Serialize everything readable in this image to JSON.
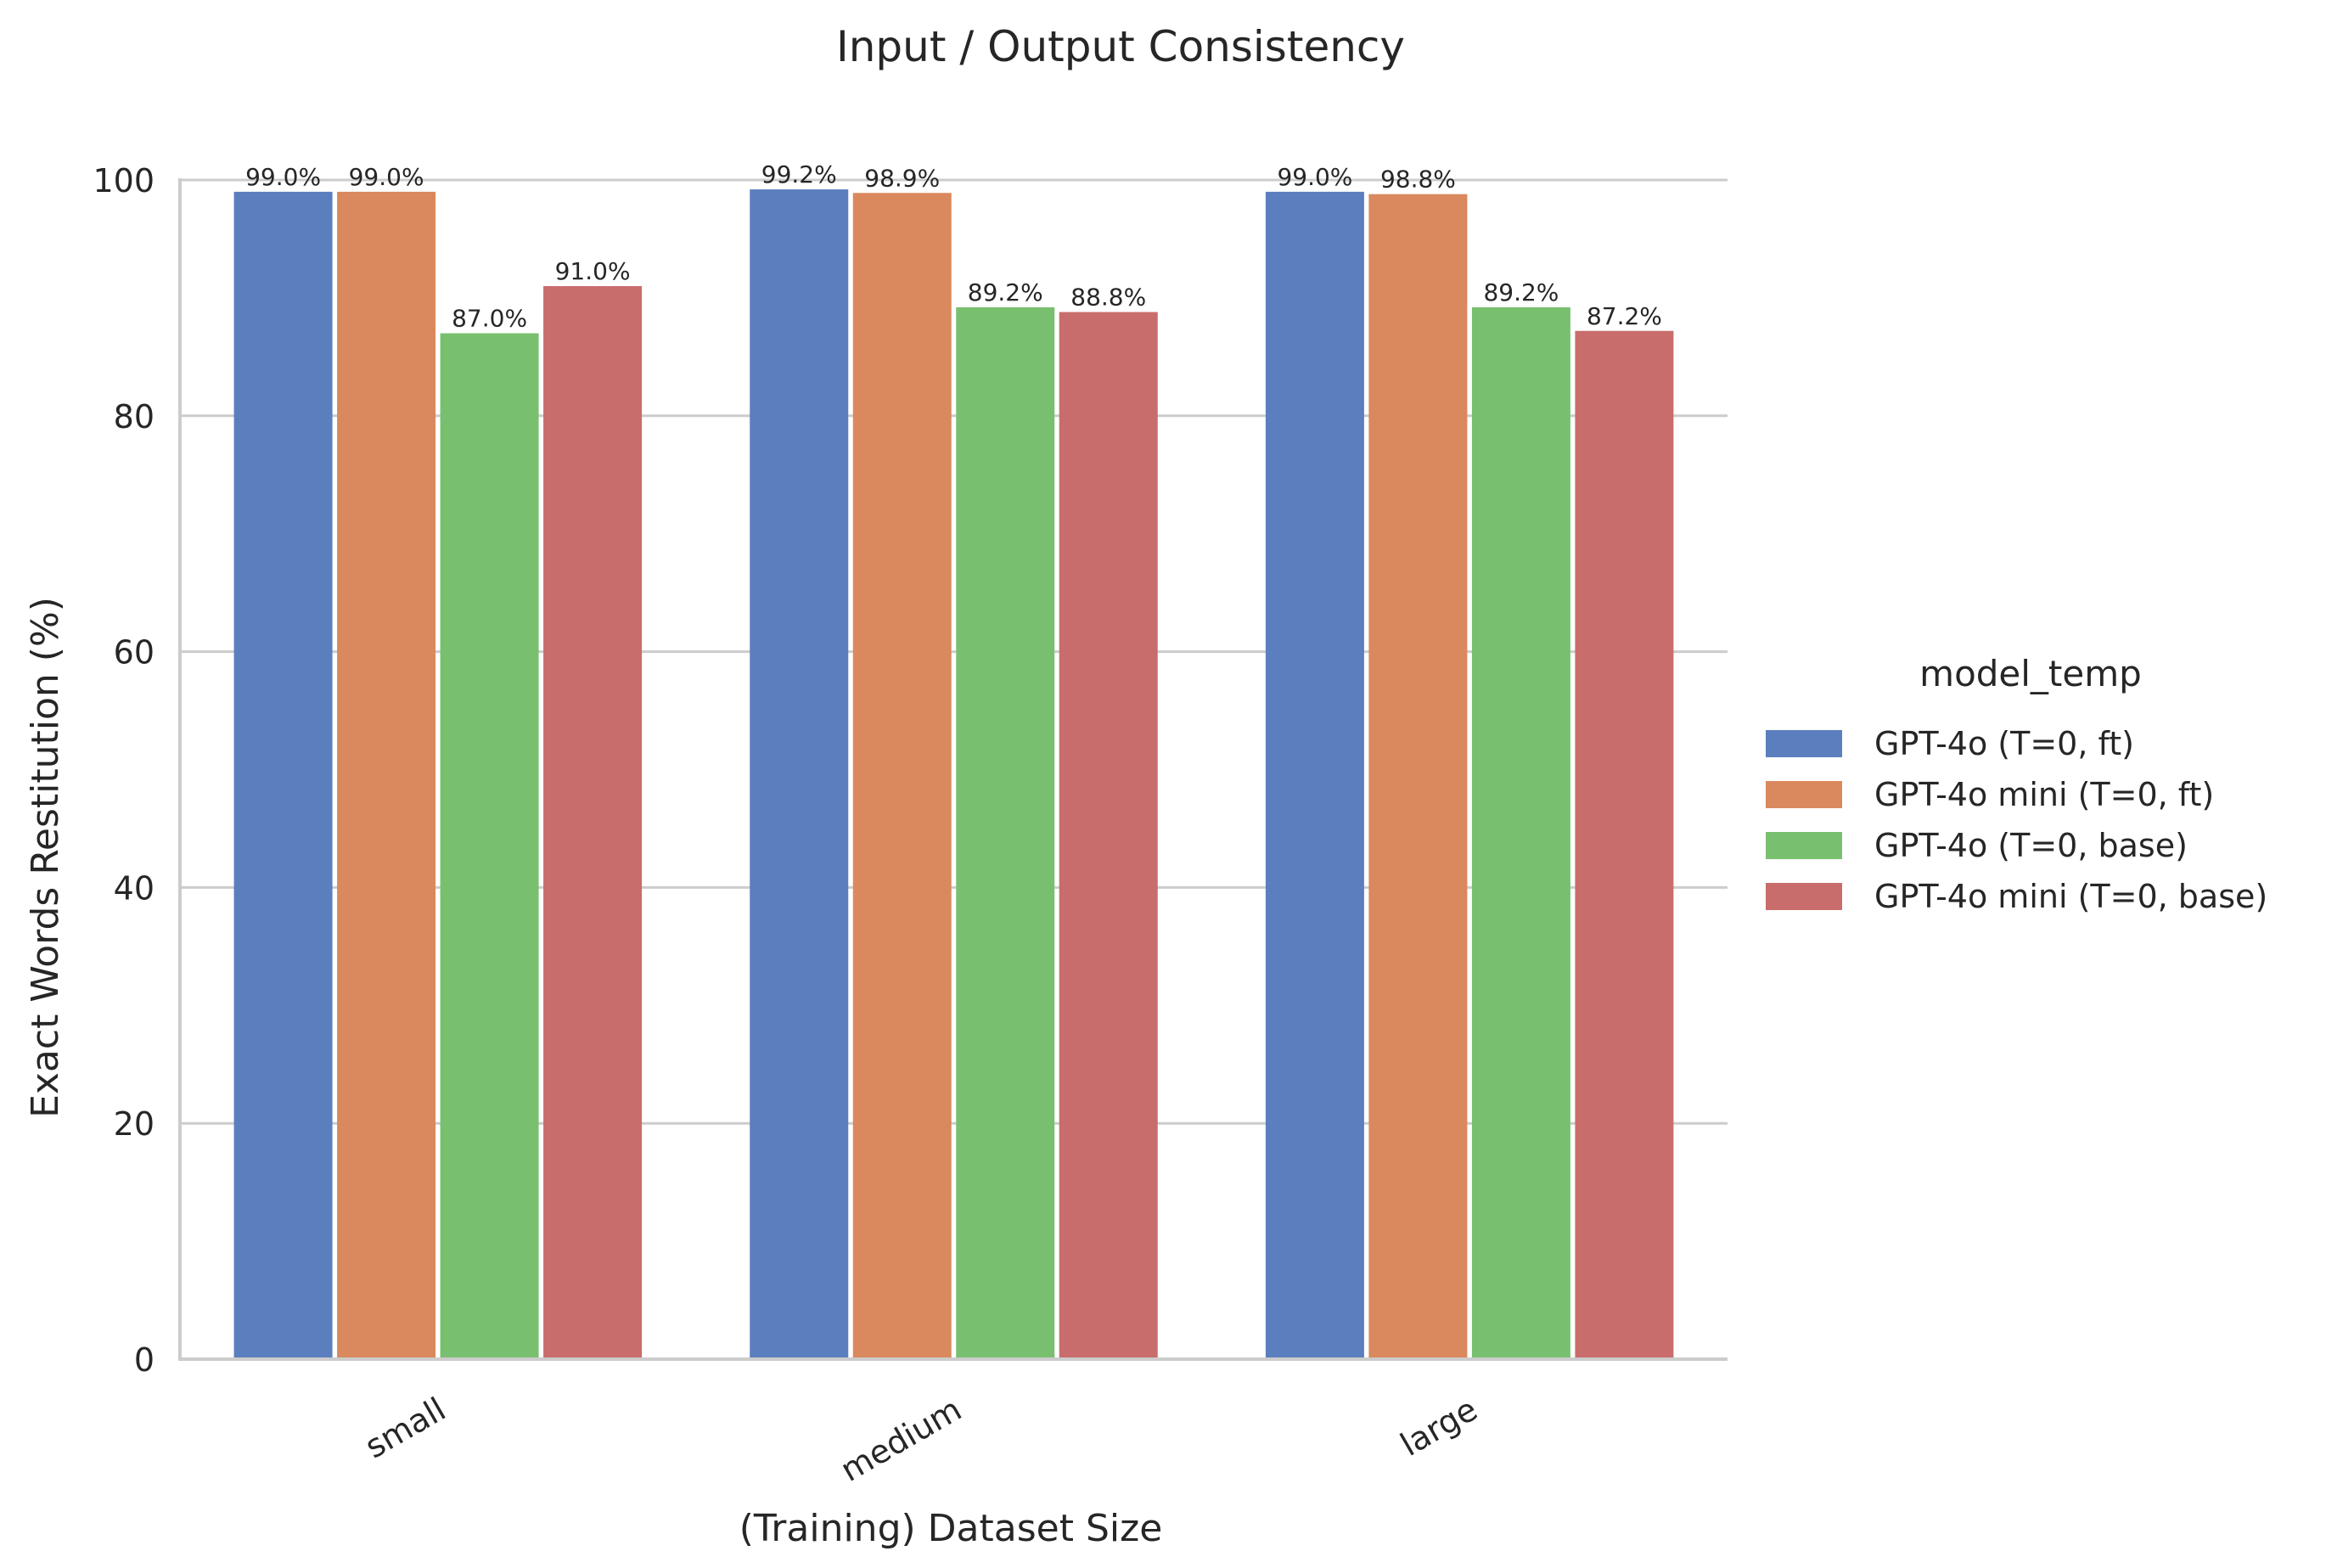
{
  "chart_data": {
    "type": "bar",
    "title": "Input / Output Consistency",
    "xlabel": "(Training) Dataset Size",
    "ylabel": "Exact Words Restitution (%)",
    "categories": [
      "small",
      "medium",
      "large"
    ],
    "ylim": [
      0,
      100
    ],
    "yticks": [
      0,
      20,
      40,
      60,
      80,
      100
    ],
    "grid": "horizontal",
    "legend": {
      "title": "model_temp",
      "placement": "right"
    },
    "series": [
      {
        "name": "GPT-4o (T=0, ft)",
        "color": "#5b7ebf",
        "values": [
          99.0,
          99.2,
          99.0
        ],
        "labels": [
          "99.0%",
          "99.2%",
          "99.0%"
        ]
      },
      {
        "name": "GPT-4o mini (T=0, ft)",
        "color": "#d9895d",
        "values": [
          99.0,
          98.9,
          98.8
        ],
        "labels": [
          "99.0%",
          "98.9%",
          "98.8%"
        ]
      },
      {
        "name": "GPT-4o (T=0, base)",
        "color": "#78c070",
        "values": [
          87.0,
          89.2,
          89.2
        ],
        "labels": [
          "87.0%",
          "89.2%",
          "89.2%"
        ]
      },
      {
        "name": "GPT-4o mini (T=0, base)",
        "color": "#c86d6b",
        "values": [
          91.0,
          88.8,
          87.2
        ],
        "labels": [
          "91.0%",
          "88.8%",
          "87.2%"
        ]
      }
    ]
  }
}
